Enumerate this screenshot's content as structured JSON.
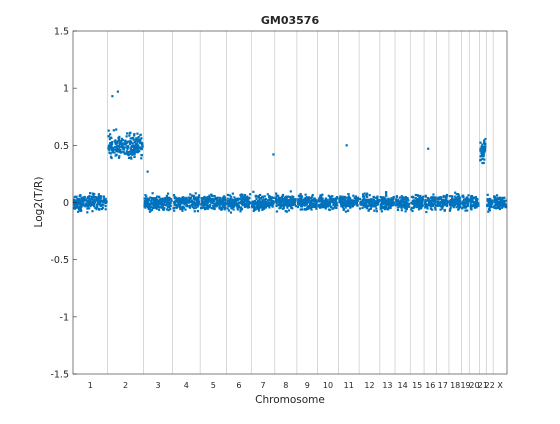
{
  "chart_data": {
    "type": "scatter",
    "title": "GM03576",
    "xlabel": "Chromosome",
    "ylabel": "Log2(T/R)",
    "ylim": [
      -1.5,
      1.5
    ],
    "ytick_labels": [
      "1.5",
      "1",
      "0.5",
      "0",
      "-0.5",
      "-1",
      "-1.5"
    ],
    "grid": "vertical chromosome boundaries",
    "marker_color": "#0072BD",
    "chromosomes": [
      {
        "label": "1",
        "start": 0,
        "end": 25,
        "level": 0.0
      },
      {
        "label": "2",
        "start": 25,
        "end": 51,
        "level": 0.5
      },
      {
        "label": "3",
        "start": 51,
        "end": 72,
        "level": 0.0
      },
      {
        "label": "4",
        "start": 72,
        "end": 92,
        "level": 0.0
      },
      {
        "label": "5",
        "start": 92,
        "end": 111,
        "level": 0.0
      },
      {
        "label": "6",
        "start": 111,
        "end": 129,
        "level": 0.0
      },
      {
        "label": "7",
        "start": 129,
        "end": 146,
        "level": 0.0
      },
      {
        "label": "8",
        "start": 146,
        "end": 162,
        "level": 0.0
      },
      {
        "label": "9",
        "start": 162,
        "end": 177,
        "level": 0.0
      },
      {
        "label": "10",
        "start": 177,
        "end": 192,
        "level": 0.0
      },
      {
        "label": "11",
        "start": 192,
        "end": 207,
        "level": 0.0
      },
      {
        "label": "12",
        "start": 207,
        "end": 222,
        "level": 0.0
      },
      {
        "label": "13",
        "start": 222,
        "end": 233,
        "level": 0.0
      },
      {
        "label": "14",
        "start": 233,
        "end": 244,
        "level": 0.0
      },
      {
        "label": "15",
        "start": 244,
        "end": 254,
        "level": 0.0
      },
      {
        "label": "16",
        "start": 254,
        "end": 263,
        "level": 0.0
      },
      {
        "label": "17",
        "start": 263,
        "end": 272,
        "level": 0.0
      },
      {
        "label": "18",
        "start": 272,
        "end": 281,
        "level": 0.0
      },
      {
        "label": "19",
        "start": 281,
        "end": 287,
        "level": 0.0
      },
      {
        "label": "20",
        "start": 287,
        "end": 294,
        "level": 0.0
      },
      {
        "label": "21",
        "start": 294,
        "end": 299,
        "level": 0.45
      },
      {
        "label": "22",
        "start": 299,
        "end": 304,
        "level": 0.0
      },
      {
        "label": "X",
        "start": 304,
        "end": 314,
        "level": 0.0
      }
    ],
    "outliers": [
      {
        "x": 28.5,
        "y": 0.93
      },
      {
        "x": 32.5,
        "y": 0.97
      },
      {
        "x": 54,
        "y": 0.27
      },
      {
        "x": 145,
        "y": 0.42
      },
      {
        "x": 198,
        "y": 0.5
      },
      {
        "x": 257,
        "y": 0.47
      }
    ]
  }
}
